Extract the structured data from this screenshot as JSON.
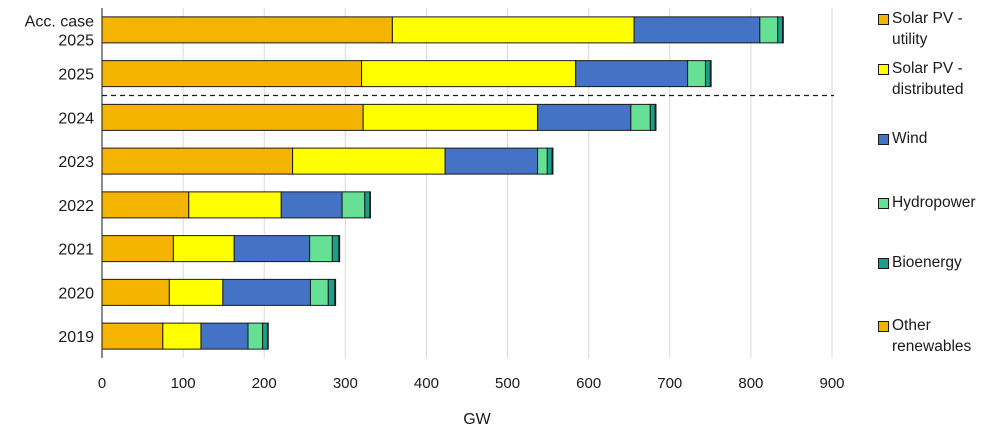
{
  "chart_data": {
    "type": "bar",
    "orientation": "horizontal",
    "stacked": true,
    "categories": [
      [
        "Acc. case",
        "2025"
      ],
      [
        "2025"
      ],
      [
        "2024"
      ],
      [
        "2023"
      ],
      [
        "2022"
      ],
      [
        "2021"
      ],
      [
        "2020"
      ],
      [
        "2019"
      ]
    ],
    "series": [
      {
        "name": "Solar PV - utility",
        "legend_lines": [
          "Solar PV -",
          "utility"
        ],
        "color": "#f5b400",
        "values": [
          358,
          320,
          322,
          235,
          107,
          88,
          83,
          75
        ]
      },
      {
        "name": "Solar PV - distributed",
        "legend_lines": [
          "Solar PV -",
          "distributed"
        ],
        "color": "#ffff00",
        "values": [
          298,
          264,
          215,
          188,
          114,
          75,
          66,
          47
        ]
      },
      {
        "name": "Wind",
        "legend_lines": [
          "Wind"
        ],
        "color": "#4472c4",
        "values": [
          155,
          138,
          115,
          114,
          75,
          93,
          108,
          58
        ]
      },
      {
        "name": "Hydropower",
        "legend_lines": [
          "Hydropower"
        ],
        "color": "#66e095",
        "values": [
          22,
          22,
          24,
          12,
          28,
          28,
          22,
          18
        ]
      },
      {
        "name": "Bioenergy",
        "legend_lines": [
          "Bioenergy"
        ],
        "color": "#17a08a",
        "values": [
          6,
          6,
          6,
          6,
          6,
          8,
          8,
          6
        ]
      },
      {
        "name": "Other renewables",
        "legend_lines": [
          "Other",
          "renewables"
        ],
        "color": "#f5b400",
        "values": [
          1,
          1,
          1,
          1,
          1,
          1,
          1,
          1
        ]
      }
    ],
    "xlim": [
      0,
      900
    ],
    "xticks": [
      "0",
      "100",
      "200",
      "300",
      "400",
      "500",
      "600",
      "700",
      "800",
      "900"
    ],
    "xlabel": "GW",
    "grid": "vertical",
    "legend_position": "right",
    "forecast_separator_between": [
      "2025",
      "2024"
    ]
  }
}
